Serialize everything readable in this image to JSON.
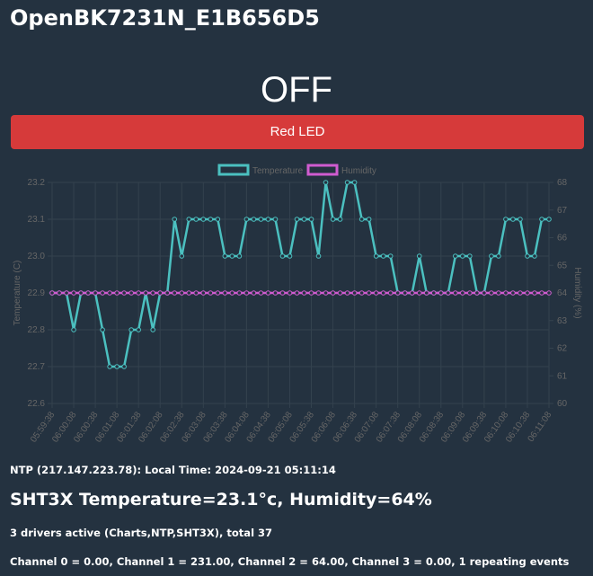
{
  "header": {
    "title": "OpenBK7231N_E1B656D5"
  },
  "state": "OFF",
  "button": "Red LED",
  "chart_data": {
    "type": "line",
    "categories": [
      "05:59:38",
      null,
      null,
      "06:00:08",
      null,
      null,
      "06:00:38",
      null,
      null,
      "06:01:08",
      null,
      null,
      "06:01:38",
      null,
      null,
      "06:02:08",
      null,
      null,
      "06:02:38",
      null,
      null,
      "06:03:08",
      null,
      null,
      "06:03:38",
      null,
      null,
      "06:04:08",
      null,
      null,
      "06:04:38",
      null,
      null,
      "06:05:08",
      null,
      null,
      "06:05:38",
      null,
      null,
      "06:06:08",
      null,
      null,
      "06:06:38",
      null,
      null,
      "06:07:08",
      null,
      null,
      "06:07:38",
      null,
      null,
      "06:08:08",
      null,
      null,
      "06:08:38",
      null,
      null,
      "06:09:08",
      null,
      null,
      "06:09:38",
      null,
      null,
      "06:10:08",
      null,
      null,
      "06:10:38",
      null,
      null,
      "06:11:08"
    ],
    "series": [
      {
        "name": "Temperature",
        "color": "#4bc0c0",
        "values": [
          22.9,
          22.9,
          22.9,
          22.8,
          22.9,
          22.9,
          22.9,
          22.8,
          22.7,
          22.7,
          22.7,
          22.8,
          22.8,
          22.9,
          22.8,
          22.9,
          22.9,
          23.1,
          23.0,
          23.1,
          23.1,
          23.1,
          23.1,
          23.1,
          23.0,
          23.0,
          23.0,
          23.1,
          23.1,
          23.1,
          23.1,
          23.1,
          23.0,
          23.0,
          23.1,
          23.1,
          23.1,
          23.0,
          23.2,
          23.1,
          23.1,
          23.2,
          23.2,
          23.1,
          23.1,
          23.0,
          23.0,
          23.0,
          22.9,
          22.9,
          22.9,
          23.0,
          22.9,
          22.9,
          22.9,
          22.9,
          23.0,
          23.0,
          23.0,
          22.9,
          22.9,
          23.0,
          23.0,
          23.1,
          23.1,
          23.1,
          23.0,
          23.0,
          23.1,
          23.1
        ]
      },
      {
        "name": "Humidity",
        "color": "#d05cd0",
        "axis": "y2",
        "values": [
          64,
          64,
          64,
          64,
          64,
          64,
          64,
          64,
          64,
          64,
          64,
          64,
          64,
          64,
          64,
          64,
          64,
          64,
          64,
          64,
          64,
          64,
          64,
          64,
          64,
          64,
          64,
          64,
          64,
          64,
          64,
          64,
          64,
          64,
          64,
          64,
          64,
          64,
          64,
          64,
          64,
          64,
          64,
          64,
          64,
          64,
          64,
          64,
          64,
          64,
          64,
          64,
          64,
          64,
          64,
          64,
          64,
          64,
          64,
          64,
          64,
          64,
          64,
          64,
          64,
          64,
          64,
          64,
          64,
          64
        ]
      }
    ],
    "ylabel": "Temperature (C)",
    "y2label": "Humidity (%)",
    "ylim": [
      22.6,
      23.2
    ],
    "yticks": [
      22.6,
      22.7,
      22.8,
      22.9,
      {
        "value": 23,
        "label": "23.0"
      },
      23.1,
      23.2
    ],
    "y2lim": [
      60,
      68
    ],
    "y2ticks": [
      60,
      61,
      62,
      63,
      64,
      65,
      66,
      67,
      68
    ],
    "grid": true,
    "legend": "top"
  },
  "info": {
    "ntp": "NTP (217.147.223.78): Local Time: 2024-09-21 05:11:14",
    "sensor": "SHT3X Temperature=23.1°c, Humidity=64%",
    "drivers": "3 drivers active (Charts,NTP,SHT3X), total 37",
    "channels": "Channel 0 = 0.00, Channel 1 = 231.00, Channel 2 = 64.00, Channel 3 = 0.00, 1 repeating events"
  }
}
